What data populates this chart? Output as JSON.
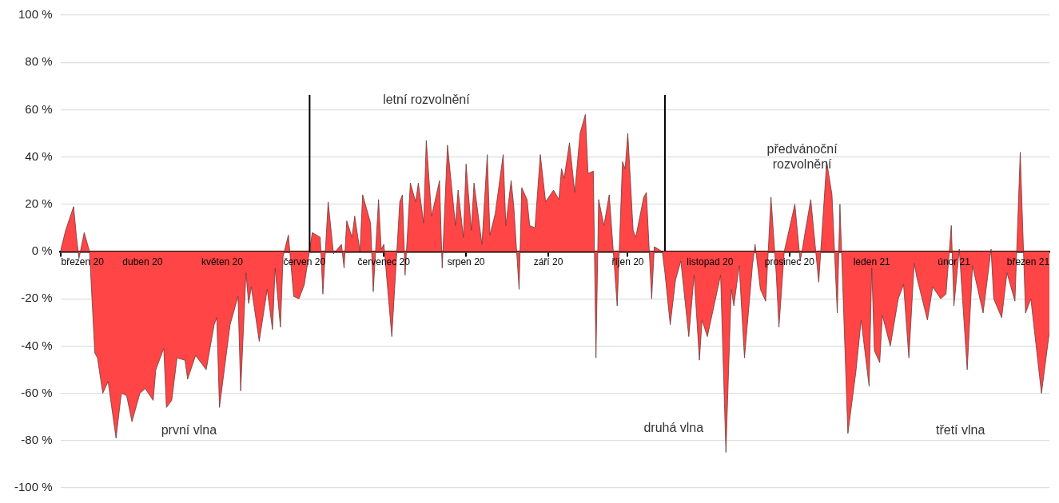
{
  "chart_data": {
    "type": "area",
    "color": "#ff4545",
    "grid": "y",
    "x": [
      "2020-03-01",
      "2020-03-03",
      "2020-03-06",
      "2020-03-07",
      "2020-03-08",
      "2020-03-10",
      "2020-03-12",
      "2020-03-14",
      "2020-03-15",
      "2020-03-17",
      "2020-03-19",
      "2020-03-22",
      "2020-03-24",
      "2020-03-26",
      "2020-03-28",
      "2020-03-31",
      "2020-04-02",
      "2020-04-05",
      "2020-04-06",
      "2020-04-09",
      "2020-04-10",
      "2020-04-12",
      "2020-04-14",
      "2020-04-17",
      "2020-04-18",
      "2020-04-21",
      "2020-04-25",
      "2020-04-28",
      "2020-04-29",
      "2020-04-30",
      "2020-05-04",
      "2020-05-07",
      "2020-05-08",
      "2020-05-10",
      "2020-05-11",
      "2020-05-12",
      "2020-05-15",
      "2020-05-18",
      "2020-05-20",
      "2020-05-21",
      "2020-05-23",
      "2020-05-24",
      "2020-05-26",
      "2020-05-28",
      "2020-05-30",
      "2020-06-01",
      "2020-06-04",
      "2020-06-07",
      "2020-06-08",
      "2020-06-10",
      "2020-06-12",
      "2020-06-15",
      "2020-06-16",
      "2020-06-17",
      "2020-06-19",
      "2020-06-20",
      "2020-06-22",
      "2020-06-23",
      "2020-06-26",
      "2020-06-27",
      "2020-06-29",
      "2020-06-30",
      "2020-07-01",
      "2020-07-04",
      "2020-07-07",
      "2020-07-08",
      "2020-07-09",
      "2020-07-11",
      "2020-07-13",
      "2020-07-14",
      "2020-07-16",
      "2020-07-17",
      "2020-07-19",
      "2020-07-22",
      "2020-07-23",
      "2020-07-25",
      "2020-07-28",
      "2020-07-29",
      "2020-07-31",
      "2020-08-01",
      "2020-08-03",
      "2020-08-04",
      "2020-08-07",
      "2020-08-09",
      "2020-08-10",
      "2020-08-12",
      "2020-08-15",
      "2020-08-16",
      "2020-08-18",
      "2020-08-19",
      "2020-08-21",
      "2020-08-22",
      "2020-08-24",
      "2020-08-25",
      "2020-08-27",
      "2020-08-29",
      "2020-08-31",
      "2020-09-03",
      "2020-09-05",
      "2020-09-06",
      "2020-09-07",
      "2020-09-09",
      "2020-09-11",
      "2020-09-13",
      "2020-09-15",
      "2020-09-16",
      "2020-09-18",
      "2020-09-19",
      "2020-09-20",
      "2020-09-22",
      "2020-09-24",
      "2020-09-27",
      "2020-09-29",
      "2020-09-30",
      "2020-10-01",
      "2020-10-03",
      "2020-10-04",
      "2020-10-07",
      "2020-10-08",
      "2020-10-10",
      "2020-10-11",
      "2020-10-14",
      "2020-10-15",
      "2020-10-17",
      "2020-10-19",
      "2020-10-21",
      "2020-10-24",
      "2020-10-26",
      "2020-10-28",
      "2020-10-29",
      "2020-10-31",
      "2020-11-05",
      "2020-11-07",
      "2020-11-09",
      "2020-11-10",
      "2020-11-12",
      "2020-11-14",
      "2020-11-17",
      "2020-11-18",
      "2020-11-20",
      "2020-11-22",
      "2020-11-24",
      "2020-11-26",
      "2020-11-27",
      "2020-11-29",
      "2020-12-03",
      "2020-12-05",
      "2020-12-06",
      "2020-12-07",
      "2020-12-09",
      "2020-12-12",
      "2020-12-15",
      "2020-12-17",
      "2020-12-19",
      "2020-12-20",
      "2020-12-23",
      "2020-12-26",
      "2020-12-28",
      "2020-12-31",
      "2021-01-01",
      "2021-01-02",
      "2021-01-04",
      "2021-01-05",
      "2021-01-08",
      "2021-01-11",
      "2021-01-13",
      "2021-01-15",
      "2021-01-17",
      "2021-01-18",
      "2021-01-22",
      "2021-01-24",
      "2021-01-27",
      "2021-01-29",
      "2021-01-31",
      "2021-02-01",
      "2021-02-03",
      "2021-02-06",
      "2021-02-08",
      "2021-02-12",
      "2021-02-15",
      "2021-02-16",
      "2021-02-19",
      "2021-02-21",
      "2021-02-24",
      "2021-02-26",
      "2021-02-28",
      "2021-03-02",
      "2021-03-06",
      "2021-03-09"
    ],
    "values": [
      0,
      9,
      19,
      7,
      -3,
      8,
      0,
      -43,
      -45,
      -60,
      -55,
      -79,
      -60,
      -61,
      -72,
      -60,
      -58,
      -63,
      -50,
      -41,
      -66,
      -63,
      -45,
      -46,
      -54,
      -44,
      -50,
      -31,
      -28,
      -66,
      -31,
      -19,
      -59,
      -9,
      -22,
      -15,
      -38,
      -16,
      -33,
      -7,
      -32,
      -2,
      7,
      -19,
      -20,
      -14,
      8,
      6,
      -18,
      21,
      -1,
      3,
      -7,
      13,
      6,
      15,
      0,
      24,
      12,
      -17,
      22,
      1,
      3,
      -36,
      21,
      24,
      -10,
      29,
      21,
      29,
      12,
      47,
      15,
      30,
      -7,
      45,
      11,
      26,
      6,
      37,
      9,
      29,
      3,
      41,
      7,
      16,
      41,
      11,
      30,
      19,
      -16,
      27,
      22,
      11,
      10,
      41,
      21,
      26,
      22,
      35,
      31,
      46,
      25,
      50,
      58,
      33,
      34,
      -45,
      22,
      11,
      24,
      -23,
      38,
      35,
      50,
      9,
      6,
      23,
      25,
      -20,
      2,
      0,
      -9,
      -31,
      -12,
      -4,
      -36,
      -10,
      -46,
      -29,
      -36,
      -10,
      -85,
      -16,
      -23,
      -6,
      -45,
      -6,
      3,
      -16,
      -21,
      23,
      -10,
      -32,
      0,
      20,
      -4,
      2,
      9,
      22,
      -13,
      38,
      24,
      -26,
      20,
      -77,
      -51,
      -29,
      -57,
      -7,
      -42,
      -47,
      -27,
      -40,
      -20,
      -14,
      -45,
      -5,
      -11,
      -29,
      -15,
      -20,
      -18,
      11,
      -23,
      1,
      -50,
      -6,
      -26,
      1,
      -20,
      -28,
      -9,
      -21,
      42,
      -26,
      -20,
      -60,
      -34
    ],
    "xlim": [
      "2020-03-01",
      "2021-03-09"
    ],
    "xticks": [
      {
        "value": "2020-03-01",
        "label": "březen 20"
      },
      {
        "value": "2020-04-01",
        "label": "duben 20"
      },
      {
        "value": "2020-05-01",
        "label": "květen 20"
      },
      {
        "value": "2020-06-01",
        "label": "červen 20"
      },
      {
        "value": "2020-07-01",
        "label": "červenec 20"
      },
      {
        "value": "2020-08-01",
        "label": "srpen 20"
      },
      {
        "value": "2020-09-01",
        "label": "září 20"
      },
      {
        "value": "2020-10-01",
        "label": "říjen 20"
      },
      {
        "value": "2020-11-01",
        "label": "listopad 20"
      },
      {
        "value": "2020-12-01",
        "label": "prosinec 20"
      },
      {
        "value": "2021-01-01",
        "label": "leden 21"
      },
      {
        "value": "2021-02-01",
        "label": "únor 21"
      },
      {
        "value": "2021-03-01",
        "label": "březen 21"
      }
    ],
    "ylim": [
      -100,
      100
    ],
    "yticks": [
      {
        "value": -100,
        "label": "-100 %"
      },
      {
        "value": -80,
        "label": "-80 %"
      },
      {
        "value": -60,
        "label": "-60 %"
      },
      {
        "value": -40,
        "label": "-40 %"
      },
      {
        "value": -20,
        "label": "-20 %"
      },
      {
        "value": 0,
        "label": "0 %"
      },
      {
        "value": 20,
        "label": "20 %"
      },
      {
        "value": 40,
        "label": "40 %"
      },
      {
        "value": 60,
        "label": "60 %"
      },
      {
        "value": 80,
        "label": "80 %"
      },
      {
        "value": 100,
        "label": "100 %"
      }
    ],
    "ref_lines": [
      {
        "axis": "x",
        "value": "2020-06-03",
        "color": "#000000"
      },
      {
        "axis": "x",
        "value": "2020-10-15",
        "color": "#000000"
      }
    ],
    "annotations": [
      "letní rozvolnění",
      "předvánoční rozvolnění",
      "první vlna",
      "druhá vlna",
      "třetí vlna"
    ]
  }
}
